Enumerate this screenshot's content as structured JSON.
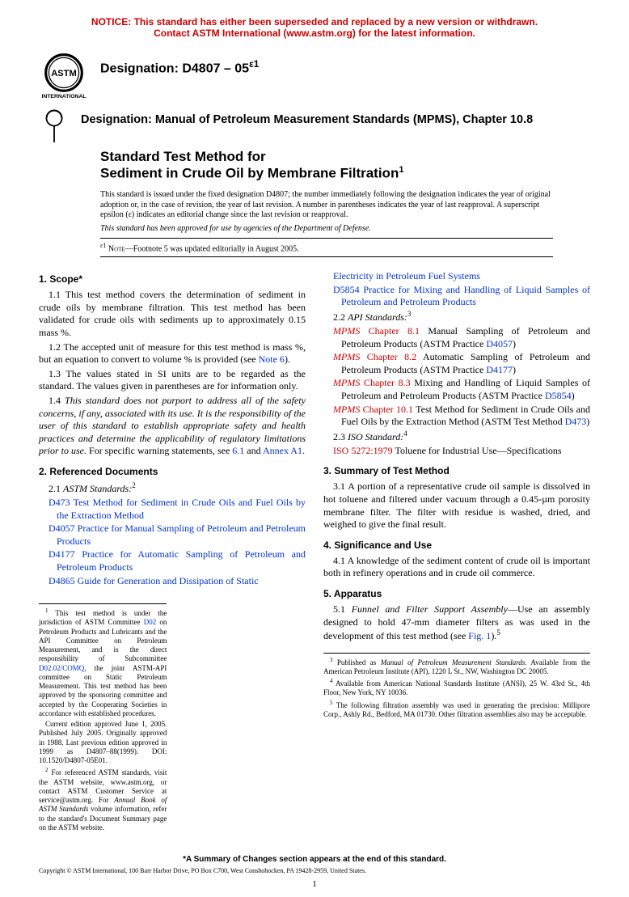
{
  "notice": {
    "line1": "NOTICE: This standard has either been superseded and replaced by a new version or withdrawn.",
    "line2": "Contact ASTM International (www.astm.org) for the latest information."
  },
  "header": {
    "designation_label": "Designation: D4807 – 05",
    "eps_sup": "ε1",
    "mpms_line": "Designation: Manual of Petroleum Measurement Standards (MPMS), Chapter 10.8"
  },
  "title": {
    "line1": "Standard Test Method for",
    "line2": "Sediment in Crude Oil by Membrane Filtration",
    "sup": "1"
  },
  "issue_note": "This standard is issued under the fixed designation D4807; the number immediately following the designation indicates the year of original adoption or, in the case of revision, the year of last revision. A number in parentheses indicates the year of last reapproval. A superscript epsilon (ε) indicates an editorial change since the last revision or reapproval.",
  "dod_note": "This standard has been approved for use by agencies of the Department of Defense.",
  "eps_note": {
    "sup": "ε1",
    "label": "Note",
    "text": "—Footnote 5 was updated editorially in August 2005."
  },
  "scope": {
    "title": "1. Scope*",
    "p1": "1.1 This test method covers the determination of sediment in crude oils by membrane filtration. This test method has been validated for crude oils with sediments up to approximately 0.15 mass %.",
    "p2a": "1.2 The accepted unit of measure for this test method is mass %, but an equation to convert to volume % is provided (see ",
    "p2_link": "Note 6",
    "p2b": ").",
    "p3": "1.3 The values stated in SI units are to be regarded as the standard. The values given in parentheses are for information only.",
    "p4a": "1.4 ",
    "p4_ital": "This standard does not purport to address all of the safety concerns, if any, associated with its use. It is the responsibility of the user of this standard to establish appropriate safety and health practices and determine the applicability of regulatory limitations prior to use.",
    "p4b": " For specific warning statements, see ",
    "p4_link1": "6.1",
    "p4c": " and ",
    "p4_link2": "Annex A1",
    "p4d": "."
  },
  "refdocs": {
    "title": "2. Referenced Documents",
    "astm_head_a": "2.1 ",
    "astm_head_ital": "ASTM Standards:",
    "astm_head_sup": "2",
    "astm": [
      {
        "code": "D473",
        "text": " Test Method for Sediment in Crude Oils and Fuel Oils by the Extraction Method"
      },
      {
        "code": "D4057",
        "text": " Practice for Manual Sampling of Petroleum and Petroleum Products"
      },
      {
        "code": "D4177",
        "text": " Practice for Automatic Sampling of Petroleum and Petroleum Products"
      },
      {
        "code": "D4865",
        "text": " Guide for Generation and Dissipation of Static"
      }
    ],
    "astm_cont": [
      {
        "code": "",
        "text": "Electricity in Petroleum Fuel Systems"
      },
      {
        "code": "D5854",
        "text": " Practice for Mixing and Handling of Liquid Samples of Petroleum and Petroleum Products"
      }
    ],
    "api_head_a": "2.2 ",
    "api_head_ital": "API Standards:",
    "api_head_sup": "3",
    "api": [
      {
        "ch": "Chapter 8.1",
        "text": " Manual Sampling of Petroleum and Petroleum Products (ASTM Practice ",
        "code": "D4057",
        "tail": ")"
      },
      {
        "ch": "Chapter 8.2",
        "text": " Automatic Sampling of Petroleum and Petroleum Products (ASTM Practice ",
        "code": "D4177",
        "tail": ")"
      },
      {
        "ch": "Chapter 8.3",
        "text": " Mixing and Handling of Liquid Samples of Petroleum and Petroleum Products (ASTM Practice ",
        "code": "D5854",
        "tail": ")"
      },
      {
        "ch": "Chapter 10.1",
        "text": " Test Method for Sediment in Crude Oils and Fuel Oils by the Extraction Method (ASTM Test Method ",
        "code": "D473",
        "tail": ")"
      }
    ],
    "iso_head_a": "2.3 ",
    "iso_head_ital": "ISO Standard:",
    "iso_head_sup": "4",
    "iso_code": "ISO 5272:1979",
    "iso_text": " Toluene for Industrial Use—Specifications"
  },
  "summary": {
    "title": "3. Summary of Test Method",
    "p1": "3.1 A portion of a representative crude oil sample is dissolved in hot toluene and filtered under vacuum through a 0.45-µm porosity membrane filter. The filter with residue is washed, dried, and weighed to give the final result."
  },
  "significance": {
    "title": "4. Significance and Use",
    "p1": "4.1 A knowledge of the sediment content of crude oil is important both in refinery operations and in crude oil commerce."
  },
  "apparatus": {
    "title": "5. Apparatus",
    "p1a": "5.1 ",
    "p1_ital": "Funnel and Filter Support Assembly",
    "p1b": "—Use an assembly designed to hold 47-mm diameter filters as was used in the development of this test method (see ",
    "p1_link": "Fig. 1",
    "p1c": ").",
    "p1_sup": "5"
  },
  "footnotes_left": {
    "f1a": "This test method is under the jurisdiction of ASTM Committee ",
    "f1_link1": "D02",
    "f1b": " on Petroleum Products and Lubricants and the API Committee on Petroleum Measurement, and is the direct responsibility of Subcommittee ",
    "f1_link2": "D02.02/COMQ",
    "f1c": ", the joint ASTM-API committee on Static Petroleum Measurement. This test method has been approved by the sponsoring committee and accepted by the Cooperating Societies in accordance with established procedures.",
    "f1d": "Current edition approved June 1, 2005. Published July 2005. Originally approved in 1988. Last previous edition approved in 1999 as D4807–88(1999). DOI: 10.1520/D4807-05E01.",
    "f2a": "For referenced ASTM standards, visit the ASTM website, www.astm.org, or contact ASTM Customer Service at service@astm.org. For ",
    "f2_ital": "Annual Book of ASTM Standards",
    "f2b": " volume information, refer to the standard's Document Summary page on the ASTM website."
  },
  "footnotes_right": {
    "f3a": "Published as ",
    "f3_ital": "Manual of Petroleum Measurement Standards",
    "f3b": ". Available from the American Petroleum Institute (API), 1220 L St., NW, Washington DC 20005.",
    "f4": "Available from American National Standards Institute (ANSI), 25 W. 43rd St., 4th Floor, New York, NY 10036.",
    "f5": "The following filtration assembly was used in generating the precision: Millipore Corp., Ashly Rd., Bedford, MA 01730. Other filtration assemblies also may be acceptable."
  },
  "summary_changes": "*A Summary of Changes section appears at the end of this standard.",
  "copyright": "Copyright © ASTM International, 100 Barr Harbor Drive, PO Box C700, West Conshohocken, PA 19428-2959, United States.",
  "pagenum": "1"
}
